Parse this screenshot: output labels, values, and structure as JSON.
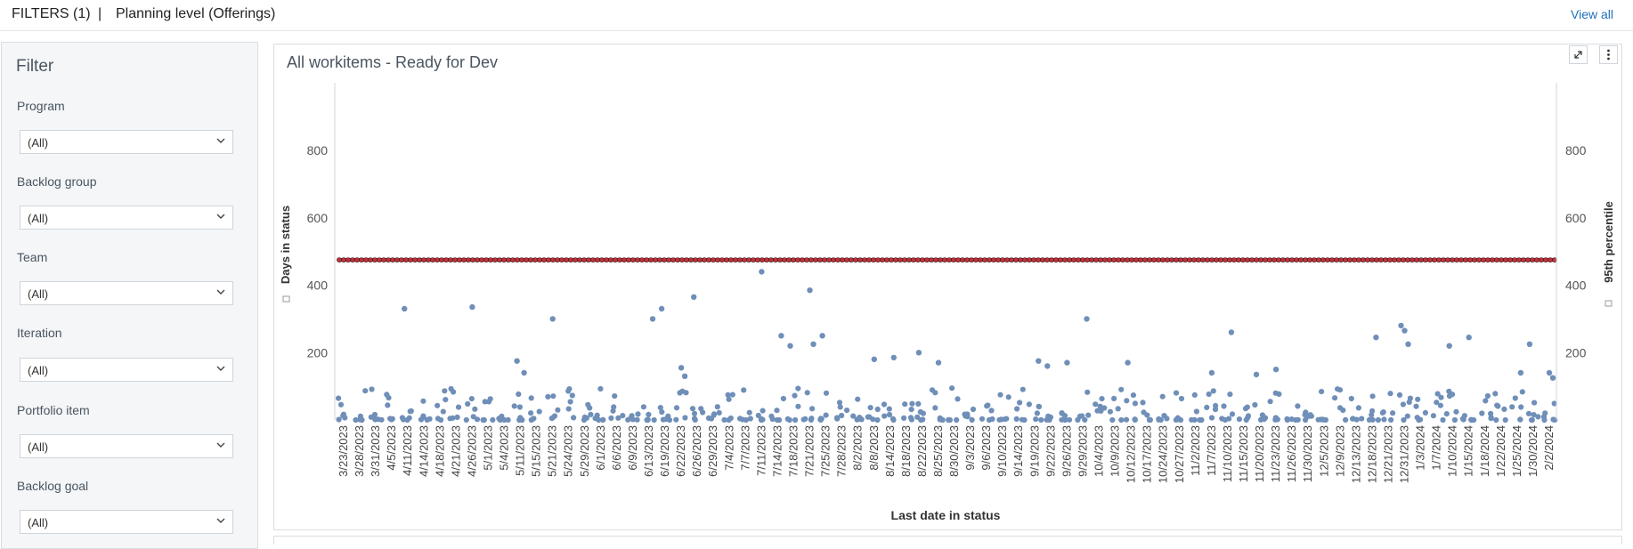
{
  "header": {
    "filters_label": "FILTERS (1)",
    "separator": "|",
    "planning_level": "Planning level  (Offerings)",
    "view_all": "View all"
  },
  "sidebar": {
    "title": "Filter",
    "filters": [
      {
        "label": "Program",
        "value": "(All)"
      },
      {
        "label": "Backlog group",
        "value": "(All)"
      },
      {
        "label": "Team",
        "value": "(All)"
      },
      {
        "label": "Iteration",
        "value": "(All)"
      },
      {
        "label": "Portfolio item",
        "value": "(All)"
      },
      {
        "label": "Backlog goal",
        "value": "(All)"
      }
    ]
  },
  "panel": {
    "title": "All workitems -  Ready for Dev",
    "expand_icon": "expand-icon",
    "menu_icon": "more-vertical-icon"
  },
  "chart_data": {
    "type": "scatter",
    "xlabel": "Last date in status",
    "ylabel": "Days in status",
    "y2label": "95th percentile",
    "ylim": [
      0,
      1000
    ],
    "yticks": [
      200,
      400,
      600,
      800
    ],
    "percentile_value": 475,
    "colors": {
      "points": "#6f8fb8",
      "percentile": "#c0303a"
    },
    "x_tick_labels": [
      "3/23/2023",
      "3/28/2023",
      "3/31/2023",
      "4/5/2023",
      "4/11/2023",
      "4/14/2023",
      "4/18/2023",
      "4/21/2023",
      "4/26/2023",
      "5/1/2023",
      "5/4/2023",
      "5/11/2023",
      "5/15/2023",
      "5/21/2023",
      "5/24/2023",
      "5/29/2023",
      "6/1/2023",
      "6/6/2023",
      "6/9/2023",
      "6/13/2023",
      "6/19/2023",
      "6/22/2023",
      "6/26/2023",
      "6/29/2023",
      "7/4/2023",
      "7/7/2023",
      "7/11/2023",
      "7/14/2023",
      "7/18/2023",
      "7/21/2023",
      "7/25/2023",
      "7/28/2023",
      "8/2/2023",
      "8/8/2023",
      "8/14/2023",
      "8/18/2023",
      "8/22/2023",
      "8/25/2023",
      "8/30/2023",
      "9/3/2023",
      "9/6/2023",
      "9/10/2023",
      "9/14/2023",
      "9/19/2023",
      "9/22/2023",
      "9/26/2023",
      "9/29/2023",
      "10/4/2023",
      "10/9/2023",
      "10/12/2023",
      "10/17/2023",
      "10/24/2023",
      "10/27/2023",
      "11/2/2023",
      "11/7/2023",
      "11/10/2023",
      "11/15/2023",
      "11/20/2023",
      "11/23/2023",
      "11/26/2023",
      "11/30/2023",
      "12/5/2023",
      "12/9/2023",
      "12/13/2023",
      "12/18/2023",
      "12/21/2023",
      "12/31/2023",
      "1/3/2024",
      "1/7/2024",
      "1/10/2024",
      "1/15/2024",
      "1/18/2024",
      "1/22/2024",
      "1/25/2024",
      "1/30/2024",
      "2/2/2024"
    ],
    "outliers": [
      {
        "x": "4/11/2023",
        "y": 330
      },
      {
        "x": "4/26/2023",
        "y": 335
      },
      {
        "x": "5/11/2023",
        "y": 140
      },
      {
        "x": "5/11/2023",
        "y": 175
      },
      {
        "x": "5/21/2023",
        "y": 300
      },
      {
        "x": "6/13/2023",
        "y": 300
      },
      {
        "x": "6/19/2023",
        "y": 330
      },
      {
        "x": "6/22/2023",
        "y": 155
      },
      {
        "x": "6/22/2023",
        "y": 130
      },
      {
        "x": "6/26/2023",
        "y": 365
      },
      {
        "x": "7/11/2023",
        "y": 440
      },
      {
        "x": "7/14/2023",
        "y": 250
      },
      {
        "x": "7/18/2023",
        "y": 220
      },
      {
        "x": "7/21/2023",
        "y": 385
      },
      {
        "x": "7/21/2023",
        "y": 225
      },
      {
        "x": "7/25/2023",
        "y": 250
      },
      {
        "x": "8/8/2023",
        "y": 180
      },
      {
        "x": "8/14/2023",
        "y": 185
      },
      {
        "x": "8/22/2023",
        "y": 200
      },
      {
        "x": "8/25/2023",
        "y": 170
      },
      {
        "x": "9/19/2023",
        "y": 175
      },
      {
        "x": "9/22/2023",
        "y": 160
      },
      {
        "x": "9/26/2023",
        "y": 170
      },
      {
        "x": "9/29/2023",
        "y": 300
      },
      {
        "x": "10/12/2023",
        "y": 170
      },
      {
        "x": "11/7/2023",
        "y": 140
      },
      {
        "x": "11/10/2023",
        "y": 260
      },
      {
        "x": "11/20/2023",
        "y": 135
      },
      {
        "x": "11/23/2023",
        "y": 150
      },
      {
        "x": "12/18/2023",
        "y": 245
      },
      {
        "x": "12/31/2023",
        "y": 280
      },
      {
        "x": "12/31/2023",
        "y": 265
      },
      {
        "x": "12/31/2023",
        "y": 225
      },
      {
        "x": "1/10/2024",
        "y": 220
      },
      {
        "x": "1/15/2024",
        "y": 245
      },
      {
        "x": "1/25/2024",
        "y": 140
      },
      {
        "x": "1/30/2024",
        "y": 225
      },
      {
        "x": "2/2/2024",
        "y": 140
      },
      {
        "x": "2/2/2024",
        "y": 125
      }
    ],
    "baseline_note_count_per_tick": 6
  }
}
